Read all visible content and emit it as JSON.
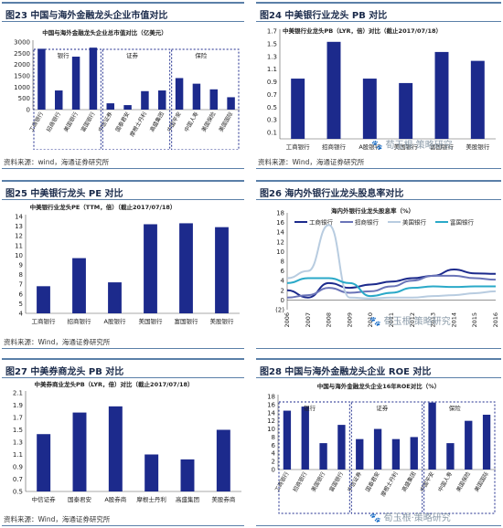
{
  "colors": {
    "bar": "#1c2a8c",
    "border": "#5a7fa8",
    "dash": "#1c2a8c"
  },
  "watermark_text": "🐾 荀玉根·策略研究",
  "panels": [
    {
      "id": "p23",
      "title": "图23  中国与海外金融龙头企业市值对比",
      "source": "资料来源：wind，海通证券研究所",
      "chart_data": {
        "type": "bar",
        "title": "中国与海外金融龙头企业总市值对比（亿美元）",
        "categories": [
          "工商银行",
          "招商银行",
          "美国银行",
          "富国银行",
          "中信证券",
          "国泰君安",
          "摩根士丹利",
          "高盛集团",
          "中国平安",
          "中国人寿",
          "美国保险",
          "美国国际"
        ],
        "values": [
          2700,
          850,
          2350,
          2750,
          280,
          200,
          820,
          850,
          1400,
          1150,
          900,
          550
        ],
        "ylim": [
          0,
          3000
        ],
        "yticks": [
          0,
          500,
          1000,
          1500,
          2000,
          2500,
          3000
        ],
        "groups": [
          {
            "label": "银行",
            "start": 0,
            "end": 3
          },
          {
            "label": "证券",
            "start": 4,
            "end": 7
          },
          {
            "label": "保险",
            "start": 8,
            "end": 11
          }
        ]
      }
    },
    {
      "id": "p24",
      "title": "图24  中美银行业龙头 PB 对比",
      "source": "资料来源：Wind，海通证券研究所",
      "chart_data": {
        "type": "bar",
        "title": "中美银行业龙头PB（LYR，倍）对比（截止2017/07/18）",
        "categories": [
          "工商银行",
          "招商银行",
          "A股银行",
          "美国银行",
          "富国银行",
          "美股银行"
        ],
        "values": [
          0.95,
          1.53,
          0.95,
          0.88,
          1.37,
          1.23
        ],
        "ylim": [
          0,
          1.7
        ],
        "yticks": [
          0.1,
          0.3,
          0.5,
          0.7,
          0.9,
          1.1,
          1.3,
          1.5,
          1.7
        ]
      }
    },
    {
      "id": "p25",
      "title": "图25  中美银行龙头 PE 对比",
      "source": "资料来源：Wind，海通证券研究所",
      "chart_data": {
        "type": "bar",
        "title": "中美银行业龙头PE（TTM，倍）（截止2017/07/18）",
        "categories": [
          "工商银行",
          "招商银行",
          "A股银行",
          "美国银行",
          "富国银行",
          "美股银行"
        ],
        "values": [
          6.8,
          9.7,
          7.2,
          13.2,
          13.3,
          12.9
        ],
        "ylim": [
          4,
          14
        ],
        "yticks": [
          4,
          5,
          6,
          7,
          8,
          9,
          10,
          11,
          12,
          13,
          14
        ]
      }
    },
    {
      "id": "p26",
      "title": "图26  海内外银行业龙头股息率对比",
      "source": "",
      "chart_data": {
        "type": "line",
        "title": "海内外银行业龙头股息率（%）",
        "x": [
          "2006",
          "2007",
          "2008",
          "2009",
          "2010",
          "2011",
          "2012",
          "2013",
          "2014",
          "2015",
          "2016"
        ],
        "ylim": [
          -2,
          18
        ],
        "yticks": [
          -2,
          0,
          2,
          4,
          6,
          8,
          10,
          12,
          14,
          16,
          18
        ],
        "series": [
          {
            "name": "工商银行",
            "color": "#1c2a8c",
            "values": [
              2,
              0.5,
              3.5,
              2.5,
              3.2,
              3.8,
              4.5,
              5,
              6.3,
              5.5,
              5.4
            ]
          },
          {
            "name": "招商银行",
            "color": "#6a74b8",
            "values": [
              0.5,
              1,
              2.5,
              1.5,
              1.8,
              2.8,
              4,
              5,
              5,
              4.5,
              4.2
            ]
          },
          {
            "name": "美国银行",
            "color": "#b8cce0",
            "values": [
              4.5,
              6,
              15.5,
              0.5,
              0.3,
              0.5,
              0.5,
              0.8,
              1,
              1.4,
              1.8
            ]
          },
          {
            "name": "富国银行",
            "color": "#2aa9c8",
            "values": [
              3.5,
              4.5,
              4.5,
              3.5,
              0.8,
              1.5,
              2.5,
              2.8,
              2.7,
              2.8,
              2.8
            ]
          }
        ]
      }
    },
    {
      "id": "p27",
      "title": "图27  中美券商龙头 PB 对比",
      "source": "资料来源：Wind，海通证券研究所",
      "chart_data": {
        "type": "bar",
        "title": "中美券商业龙头PB（LYR，倍）对比（截止2017/07/18）",
        "categories": [
          "中信证券",
          "国泰君安",
          "A股券商",
          "摩根士丹利",
          "高盛集团",
          "美股券商"
        ],
        "values": [
          1.43,
          1.78,
          1.88,
          1.1,
          1.02,
          1.5
        ],
        "ylim": [
          0.5,
          2.1
        ],
        "yticks": [
          0.5,
          0.7,
          0.9,
          1.1,
          1.3,
          1.5,
          1.7,
          1.9,
          2.1
        ]
      }
    },
    {
      "id": "p28",
      "title": "图28  中国与海外金融龙头企业 ROE 对比",
      "source": "",
      "chart_data": {
        "type": "bar",
        "title": "中国与海外金融龙头企业16年ROE对比（%）",
        "categories": [
          "工商银行",
          "招商银行",
          "美国银行",
          "富国银行",
          "中信证券",
          "国泰君安",
          "摩根士丹利",
          "高盛集团",
          "中国平安",
          "中国人寿",
          "美国保险",
          "美国国际"
        ],
        "values": [
          14.5,
          15.5,
          6.5,
          11,
          7.5,
          10,
          7.5,
          8,
          16.5,
          6.5,
          12,
          13.5
        ],
        "ylim": [
          0,
          18
        ],
        "yticks": [
          0,
          2,
          4,
          6,
          8,
          10,
          12,
          14,
          16,
          18
        ],
        "groups": [
          {
            "label": "银行",
            "start": 0,
            "end": 3
          },
          {
            "label": "证券",
            "start": 4,
            "end": 7
          },
          {
            "label": "保险",
            "start": 8,
            "end": 11
          }
        ]
      }
    }
  ]
}
